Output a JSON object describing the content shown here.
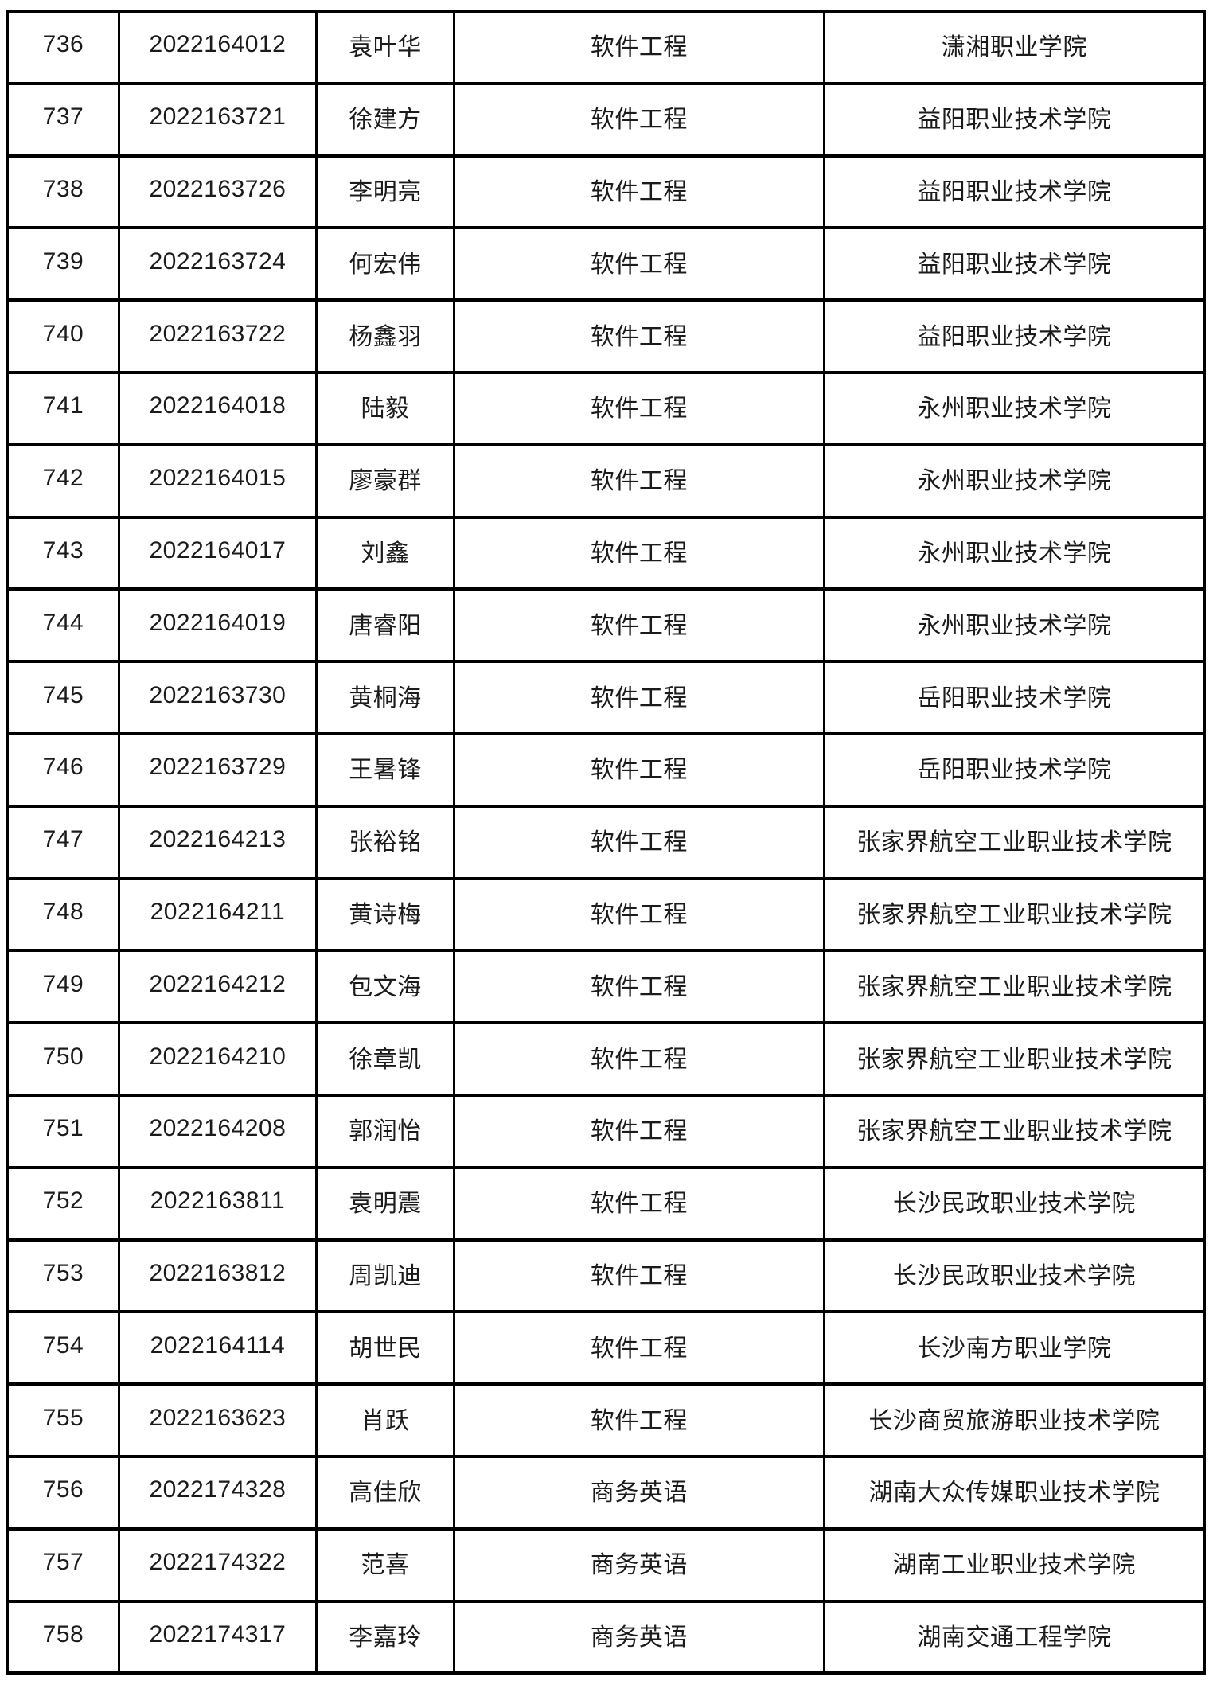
{
  "document": {
    "background_color": "#ffffff",
    "border_color": "#000000",
    "text_color": "#1b1b1b"
  },
  "table": {
    "column_keys": [
      "serial",
      "student_id",
      "name",
      "major",
      "college"
    ],
    "rows": [
      {
        "serial": "736",
        "student_id": "2022164012",
        "name": "袁叶华",
        "major": "软件工程",
        "college": "潇湘职业学院"
      },
      {
        "serial": "737",
        "student_id": "2022163721",
        "name": "徐建方",
        "major": "软件工程",
        "college": "益阳职业技术学院"
      },
      {
        "serial": "738",
        "student_id": "2022163726",
        "name": "李明亮",
        "major": "软件工程",
        "college": "益阳职业技术学院"
      },
      {
        "serial": "739",
        "student_id": "2022163724",
        "name": "何宏伟",
        "major": "软件工程",
        "college": "益阳职业技术学院"
      },
      {
        "serial": "740",
        "student_id": "2022163722",
        "name": "杨鑫羽",
        "major": "软件工程",
        "college": "益阳职业技术学院"
      },
      {
        "serial": "741",
        "student_id": "2022164018",
        "name": "陆毅",
        "major": "软件工程",
        "college": "永州职业技术学院"
      },
      {
        "serial": "742",
        "student_id": "2022164015",
        "name": "廖豪群",
        "major": "软件工程",
        "college": "永州职业技术学院"
      },
      {
        "serial": "743",
        "student_id": "2022164017",
        "name": "刘鑫",
        "major": "软件工程",
        "college": "永州职业技术学院"
      },
      {
        "serial": "744",
        "student_id": "2022164019",
        "name": "唐睿阳",
        "major": "软件工程",
        "college": "永州职业技术学院"
      },
      {
        "serial": "745",
        "student_id": "2022163730",
        "name": "黄桐海",
        "major": "软件工程",
        "college": "岳阳职业技术学院"
      },
      {
        "serial": "746",
        "student_id": "2022163729",
        "name": "王暑锋",
        "major": "软件工程",
        "college": "岳阳职业技术学院"
      },
      {
        "serial": "747",
        "student_id": "2022164213",
        "name": "张裕铭",
        "major": "软件工程",
        "college": "张家界航空工业职业技术学院"
      },
      {
        "serial": "748",
        "student_id": "2022164211",
        "name": "黄诗梅",
        "major": "软件工程",
        "college": "张家界航空工业职业技术学院"
      },
      {
        "serial": "749",
        "student_id": "2022164212",
        "name": "包文海",
        "major": "软件工程",
        "college": "张家界航空工业职业技术学院"
      },
      {
        "serial": "750",
        "student_id": "2022164210",
        "name": "徐章凯",
        "major": "软件工程",
        "college": "张家界航空工业职业技术学院"
      },
      {
        "serial": "751",
        "student_id": "2022164208",
        "name": "郭润怡",
        "major": "软件工程",
        "college": "张家界航空工业职业技术学院"
      },
      {
        "serial": "752",
        "student_id": "2022163811",
        "name": "袁明震",
        "major": "软件工程",
        "college": "长沙民政职业技术学院"
      },
      {
        "serial": "753",
        "student_id": "2022163812",
        "name": "周凯迪",
        "major": "软件工程",
        "college": "长沙民政职业技术学院"
      },
      {
        "serial": "754",
        "student_id": "2022164114",
        "name": "胡世民",
        "major": "软件工程",
        "college": "长沙南方职业学院"
      },
      {
        "serial": "755",
        "student_id": "2022163623",
        "name": "肖跃",
        "major": "软件工程",
        "college": "长沙商贸旅游职业技术学院"
      },
      {
        "serial": "756",
        "student_id": "2022174328",
        "name": "高佳欣",
        "major": "商务英语",
        "college": "湖南大众传媒职业技术学院"
      },
      {
        "serial": "757",
        "student_id": "2022174322",
        "name": "范喜",
        "major": "商务英语",
        "college": "湖南工业职业技术学院"
      },
      {
        "serial": "758",
        "student_id": "2022174317",
        "name": "李嘉玲",
        "major": "商务英语",
        "college": "湖南交通工程学院"
      }
    ]
  }
}
